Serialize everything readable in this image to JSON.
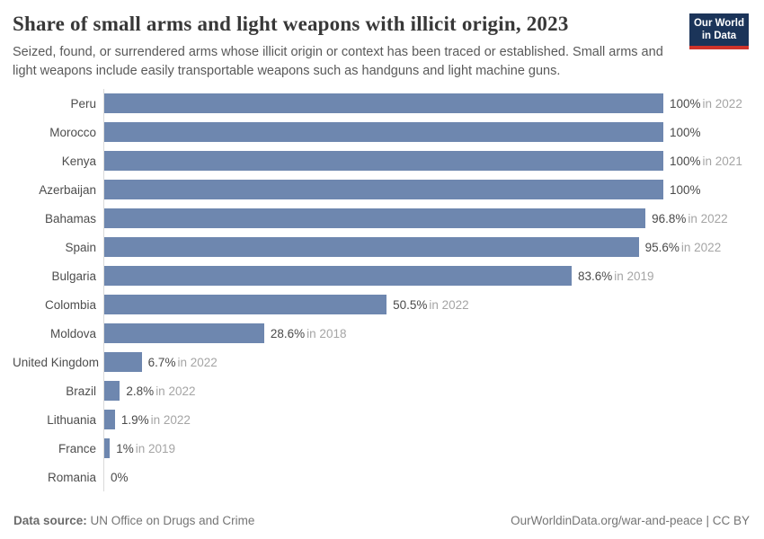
{
  "header": {
    "logo": {
      "line1": "Our World",
      "line2": "in Data"
    }
  },
  "chart_data": {
    "type": "bar",
    "orientation": "horizontal",
    "title": "Share of small arms and light weapons with illicit origin, 2023",
    "subtitle": "Seized, found, or surrendered arms whose illicit origin or context has been traced or established. Small arms and light weapons include easily transportable weapons such as handguns and light machine guns.",
    "unit": "%",
    "xlim": [
      0,
      100
    ],
    "grid": false,
    "legend": "none",
    "bar_color": "#6e87af",
    "categories": [
      "Peru",
      "Morocco",
      "Kenya",
      "Azerbaijan",
      "Bahamas",
      "Spain",
      "Bulgaria",
      "Colombia",
      "Moldova",
      "United Kingdom",
      "Brazil",
      "Lithuania",
      "France",
      "Romania"
    ],
    "values": [
      100,
      100,
      100,
      100,
      96.8,
      95.6,
      83.6,
      50.5,
      28.6,
      6.7,
      2.8,
      1.9,
      1,
      0
    ],
    "value_labels": [
      "100%",
      "100%",
      "100%",
      "100%",
      "96.8%",
      "95.6%",
      "83.6%",
      "50.5%",
      "28.6%",
      "6.7%",
      "2.8%",
      "1.9%",
      "1%",
      "0%"
    ],
    "year_notes": [
      "in 2022",
      "",
      "in 2021",
      "",
      "in 2022",
      "in 2022",
      "in 2019",
      "in 2022",
      "in 2018",
      "in 2022",
      "in 2022",
      "in 2022",
      "in 2019",
      ""
    ]
  },
  "footer": {
    "source_label": "Data source:",
    "source_value": "UN Office on Drugs and Crime",
    "attribution": "OurWorldinData.org/war-and-peace | CC BY"
  }
}
